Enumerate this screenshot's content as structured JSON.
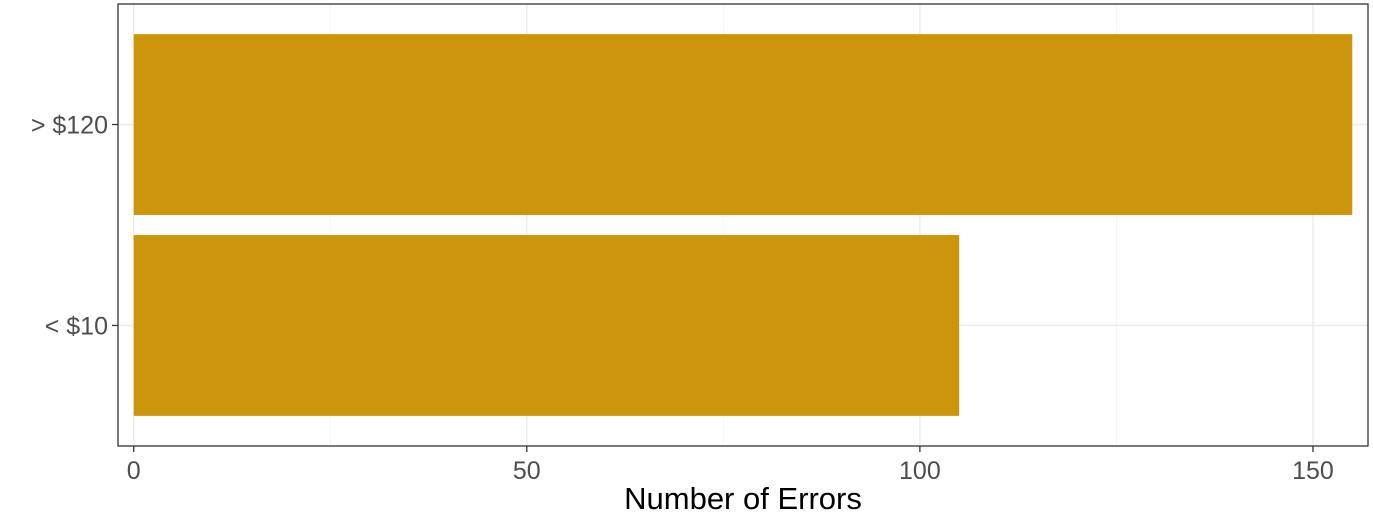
{
  "chart_data": {
    "type": "bar",
    "orientation": "horizontal",
    "categories": [
      "< $10",
      "> $120"
    ],
    "values": [
      105,
      155
    ],
    "title": "",
    "xlabel": "Number of Errors",
    "ylabel": "",
    "xlim": [
      -2,
      157
    ],
    "x_ticks": [
      0,
      50,
      100,
      150
    ],
    "x_tick_labels": [
      "0",
      "50",
      "100",
      "150"
    ],
    "bar_color": "#CD950C",
    "grid": true,
    "legend": "none"
  }
}
